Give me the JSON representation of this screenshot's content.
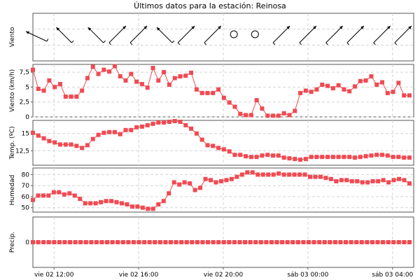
{
  "title": "Últimos datos para la estación: Reinosa",
  "colors": {
    "series": "#f04a52",
    "arrow": "#000000",
    "grid": "#d4d4d4"
  },
  "chart_data": [
    {
      "type": "vector",
      "ylabel": "Viento",
      "unit": "direction arrows",
      "calm_marker": "circle",
      "x_times_h": [
        11,
        12.5,
        14,
        15,
        16,
        17.25,
        18.25,
        19.5,
        20.5,
        21.5,
        22.75,
        24,
        25.25,
        26.25,
        27.5,
        28.5
      ],
      "arrows": [
        {
          "dir": "from-NW-to-WNW",
          "calm": false
        },
        {
          "dir": "NW-SE",
          "calm": false
        },
        {
          "dir": "NW-SE",
          "calm": false
        },
        {
          "dir": "SW-NE",
          "calm": false
        },
        {
          "dir": "SW-NE",
          "calm": false
        },
        {
          "dir": "NW-SE",
          "calm": false
        },
        {
          "dir": "SW-NE",
          "calm": false
        },
        {
          "dir": "SW-NE",
          "calm": false
        },
        {
          "dir": "calm",
          "calm": true
        },
        {
          "dir": "calm",
          "calm": true
        },
        {
          "dir": "SW-NE",
          "calm": false
        },
        {
          "dir": "SW-NE",
          "calm": false
        },
        {
          "dir": "SW-NE",
          "calm": false
        },
        {
          "dir": "SW-NE",
          "calm": false
        },
        {
          "dir": "SW-NE",
          "calm": false
        },
        {
          "dir": "SW-NE",
          "calm": false
        }
      ]
    },
    {
      "type": "line",
      "ylabel": "Viento (km/h)",
      "yticks": [
        "0",
        "2,5",
        "5",
        "7,5"
      ],
      "ytick_values": [
        0,
        2.5,
        5,
        7.5
      ],
      "ylim": [
        0,
        8.8
      ],
      "values": [
        7.9,
        4.7,
        4.4,
        6.1,
        5,
        5.5,
        3.4,
        3.4,
        3.4,
        4.4,
        6.5,
        8.4,
        7.2,
        7.9,
        7.6,
        8.5,
        6.8,
        6.1,
        7.2,
        5.9,
        5.5,
        4.9,
        8.2,
        6.1,
        7.5,
        5.4,
        6.5,
        6.8,
        6.9,
        7.4,
        4.6,
        4,
        4,
        4,
        4.6,
        3.2,
        2.4,
        1.7,
        0.5,
        0.3,
        0.3,
        2.8,
        1.4,
        0.2,
        0.2,
        0.2,
        0.6,
        0.3,
        1,
        4,
        4.4,
        4.2,
        4.6,
        5.4,
        5.2,
        4.8,
        5.3,
        4.6,
        4.3,
        5.1,
        6,
        6.1,
        6.8,
        5.4,
        5.8,
        4,
        4.2,
        5.7,
        3.6,
        3.6
      ]
    },
    {
      "type": "line",
      "ylabel": "Temp. (ºC)",
      "yticks": [
        "12,5",
        "15"
      ],
      "ytick_values": [
        12.5,
        15
      ],
      "ylim": [
        10.4,
        16.9
      ],
      "values": [
        15.1,
        14.7,
        14.3,
        13.9,
        13.7,
        13.4,
        13.4,
        13.4,
        13.2,
        12.9,
        13.3,
        14.2,
        14.8,
        15.1,
        15.2,
        15.2,
        14.9,
        15.5,
        15.5,
        15.9,
        16,
        16.2,
        16.4,
        16.6,
        16.6,
        16.7,
        16.8,
        16.7,
        16.2,
        15.7,
        15,
        14.1,
        13.3,
        13.2,
        12.9,
        12.7,
        12.4,
        11.9,
        11.9,
        11.7,
        11.6,
        11.6,
        11.8,
        11.9,
        11.8,
        11.8,
        11.5,
        11.4,
        11.3,
        11.2,
        11.3,
        11.6,
        11.6,
        11.6,
        11.6,
        11.6,
        11.6,
        11.6,
        11.6,
        11.5,
        11.6,
        11.7,
        11.8,
        11.9,
        11.9,
        11.8,
        11.6,
        11.6,
        11.5,
        11.5
      ]
    },
    {
      "type": "line",
      "ylabel": "Humedad",
      "yticks": [
        "50",
        "60",
        "70",
        "80"
      ],
      "ytick_values": [
        50,
        60,
        70,
        80
      ],
      "ylim": [
        46,
        86
      ],
      "values": [
        57,
        61,
        61,
        61,
        64,
        64,
        62,
        63,
        61,
        58,
        54,
        54,
        54,
        55,
        56,
        56,
        55,
        54,
        53,
        51,
        51,
        50,
        49,
        49,
        53,
        56,
        63,
        73,
        71,
        73,
        72,
        66,
        68,
        76,
        75,
        73,
        74,
        75,
        76,
        78,
        80,
        82,
        82,
        80,
        80,
        80,
        80,
        81,
        80,
        80,
        80,
        80,
        80,
        78,
        78,
        78,
        77,
        76,
        74,
        75,
        75,
        74,
        74,
        73,
        73,
        74,
        74,
        75,
        73,
        75,
        76,
        75,
        72
      ]
    },
    {
      "type": "line",
      "ylabel": "Precip.",
      "yticks": [
        "0"
      ],
      "ytick_values": [
        0
      ],
      "ylim": [
        -1,
        1
      ],
      "values": [
        0,
        0,
        0,
        0,
        0,
        0,
        0,
        0,
        0,
        0,
        0,
        0,
        0,
        0,
        0,
        0,
        0,
        0,
        0,
        0,
        0,
        0,
        0,
        0,
        0,
        0,
        0,
        0,
        0,
        0,
        0,
        0,
        0,
        0,
        0,
        0,
        0,
        0,
        0,
        0,
        0,
        0,
        0,
        0,
        0,
        0,
        0,
        0,
        0,
        0,
        0,
        0,
        0,
        0,
        0,
        0,
        0,
        0,
        0,
        0,
        0,
        0,
        0,
        0,
        0,
        0,
        0,
        0,
        0,
        0,
        0,
        0
      ]
    }
  ],
  "x_axis": {
    "tick_labels": [
      "vie 02 12:00",
      "vie 02 16:00",
      "vie 02 20:00",
      "sáb 03 00:00",
      "sáb 03 04:00"
    ],
    "tick_hours": [
      12,
      16,
      20,
      24,
      28
    ],
    "range_hours": [
      11,
      29
    ]
  }
}
